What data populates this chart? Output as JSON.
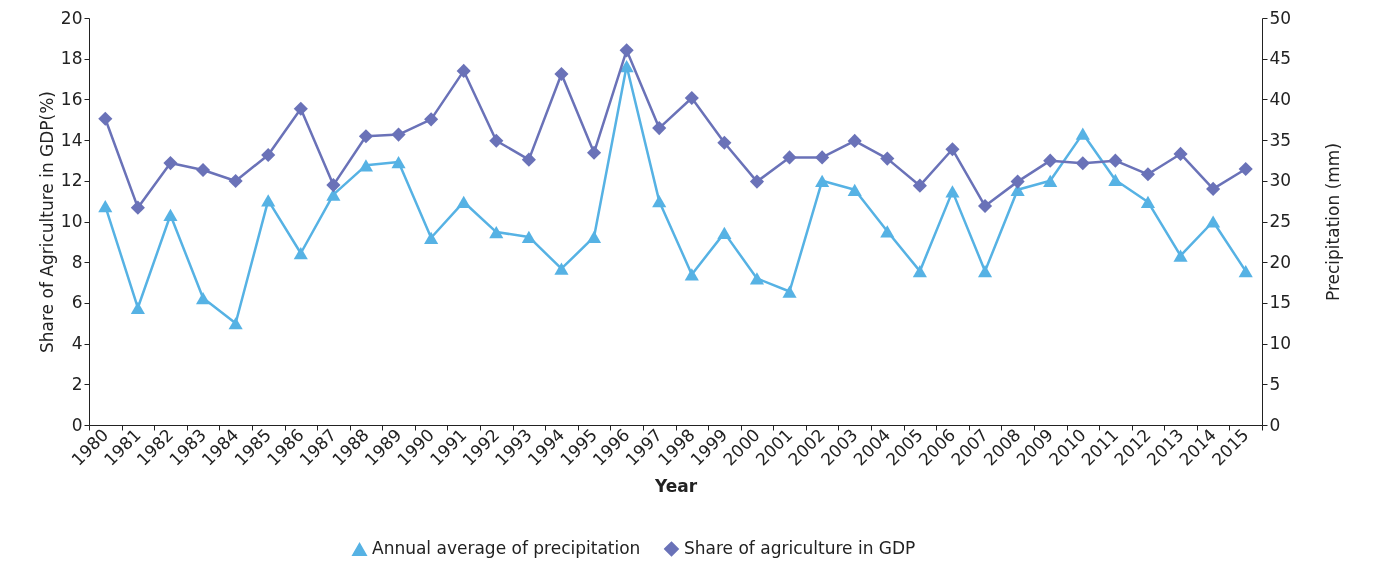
{
  "chart_data": {
    "type": "line",
    "xlabel": "Year",
    "ylabel": "Share of Agriculture in GDP(%)",
    "y2label": "Precipitation (mm)",
    "categories": [
      "1980",
      "1981",
      "1982",
      "1983",
      "1984",
      "1985",
      "1986",
      "1987",
      "1988",
      "1989",
      "1990",
      "1991",
      "1992",
      "1993",
      "1994",
      "1995",
      "1996",
      "1997",
      "1998",
      "1999",
      "2000",
      "2001",
      "2002",
      "2003",
      "2004",
      "2005",
      "2006",
      "2007",
      "2008",
      "2009",
      "2010",
      "2011",
      "2012",
      "2013",
      "2014",
      "2015"
    ],
    "series": [
      {
        "name": "Annual average of precipitation",
        "color": "#56b2e4",
        "axis": "y2",
        "marker": "triangle",
        "values": [
          26.9,
          14.4,
          25.8,
          15.6,
          12.5,
          27.6,
          21.1,
          28.3,
          31.9,
          32.3,
          23.0,
          27.4,
          23.7,
          23.1,
          19.2,
          23.1,
          44.1,
          27.5,
          18.5,
          23.6,
          18.0,
          16.4,
          30.0,
          28.9,
          23.8,
          18.9,
          28.7,
          18.9,
          28.9,
          30.0,
          35.8,
          30.1,
          27.4,
          20.8,
          25.0,
          18.9
        ]
      },
      {
        "name": "Share of agriculture in GDP",
        "color": "#6a72b8",
        "marker": "diamond",
        "values": [
          15.05,
          10.68,
          12.87,
          12.53,
          11.99,
          13.27,
          15.54,
          11.79,
          14.19,
          14.27,
          15.02,
          17.4,
          13.97,
          13.04,
          17.25,
          13.38,
          18.41,
          14.59,
          16.07,
          13.87,
          11.96,
          13.15,
          13.15,
          13.96,
          13.09,
          11.76,
          13.55,
          10.76,
          11.96,
          12.99,
          12.86,
          12.99,
          12.32,
          13.32,
          11.6,
          12.58
        ]
      }
    ],
    "ylim": [
      0,
      20
    ],
    "yticks": [
      0,
      2,
      4,
      6,
      8,
      10,
      12,
      14,
      16,
      18,
      20
    ],
    "y2lim": [
      0,
      50
    ],
    "y2ticks": [
      0,
      5,
      10,
      15,
      20,
      25,
      30,
      35,
      40,
      45,
      50
    ],
    "grid": false,
    "legend": "bottom",
    "line_style": "solid"
  }
}
